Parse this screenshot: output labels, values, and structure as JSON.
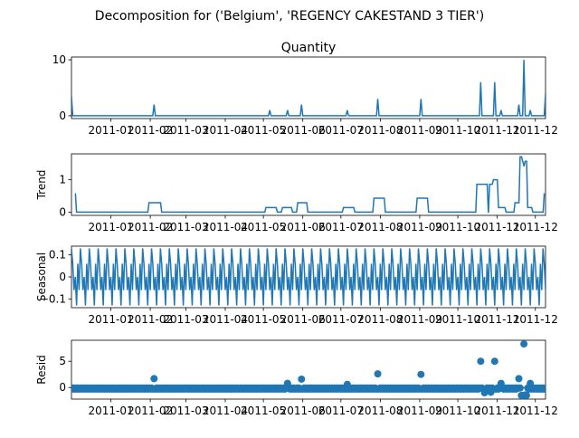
{
  "figure": {
    "suptitle": "Decomposition for ('Belgium', 'REGENCY CAKESTAND 3 TIER')",
    "line_color": "#1f77b4"
  },
  "chart_data": [
    {
      "type": "line",
      "title": "Quantity",
      "ylabel": "",
      "ylim": [
        -0.5,
        10.5
      ],
      "yticks": [
        0,
        10
      ],
      "xlim": [
        "2010-12-01",
        "2011-12-09"
      ],
      "xtick_labels": [
        "2011-01",
        "2011-02",
        "2011-03",
        "2011-04",
        "2011-05",
        "2011-06",
        "2011-07",
        "2011-08",
        "2011-09",
        "2011-10",
        "2011-11",
        "2011-12"
      ],
      "baseline": 0,
      "spikes": [
        {
          "x": "2010-12-01",
          "y": 3.5
        },
        {
          "x": "2011-02-04",
          "y": 2
        },
        {
          "x": "2011-05-06",
          "y": 1
        },
        {
          "x": "2011-05-20",
          "y": 1
        },
        {
          "x": "2011-05-31",
          "y": 2
        },
        {
          "x": "2011-07-06",
          "y": 1
        },
        {
          "x": "2011-07-30",
          "y": 3
        },
        {
          "x": "2011-09-02",
          "y": 3
        },
        {
          "x": "2011-10-19",
          "y": 6
        },
        {
          "x": "2011-10-30",
          "y": 6
        },
        {
          "x": "2011-11-04",
          "y": 1
        },
        {
          "x": "2011-11-18",
          "y": 2
        },
        {
          "x": "2011-11-22",
          "y": 10
        },
        {
          "x": "2011-11-27",
          "y": 1
        },
        {
          "x": "2011-12-09",
          "y": 4
        }
      ]
    },
    {
      "type": "line",
      "title": "",
      "ylabel": "Trend",
      "ylim": [
        -0.1,
        1.8
      ],
      "yticks": [
        0,
        1
      ],
      "xlim": [
        "2010-12-01",
        "2011-12-09"
      ],
      "xtick_labels": [
        "2011-01",
        "2011-02",
        "2011-03",
        "2011-04",
        "2011-05",
        "2011-06",
        "2011-07",
        "2011-08",
        "2011-09",
        "2011-10",
        "2011-11",
        "2011-12"
      ],
      "steps": [
        {
          "x": "2010-12-04",
          "y": 0.57
        },
        {
          "x": "2010-12-05",
          "y": 0
        },
        {
          "x": "2011-01-31",
          "y": 0.29
        },
        {
          "x": "2011-02-10",
          "y": 0
        },
        {
          "x": "2011-05-03",
          "y": 0.14
        },
        {
          "x": "2011-05-12",
          "y": 0
        },
        {
          "x": "2011-05-16",
          "y": 0.14
        },
        {
          "x": "2011-05-24",
          "y": 0
        },
        {
          "x": "2011-05-28",
          "y": 0.29
        },
        {
          "x": "2011-06-05",
          "y": 0
        },
        {
          "x": "2011-07-03",
          "y": 0.14
        },
        {
          "x": "2011-07-12",
          "y": 0
        },
        {
          "x": "2011-07-27",
          "y": 0.43
        },
        {
          "x": "2011-08-05",
          "y": 0
        },
        {
          "x": "2011-08-30",
          "y": 0.43
        },
        {
          "x": "2011-09-08",
          "y": 0
        },
        {
          "x": "2011-10-16",
          "y": 0.86
        },
        {
          "x": "2011-10-25",
          "y": 0
        },
        {
          "x": "2011-10-26",
          "y": 0.86
        },
        {
          "x": "2011-10-29",
          "y": 1.0
        },
        {
          "x": "2011-11-02",
          "y": 0.14
        },
        {
          "x": "2011-11-08",
          "y": 0
        },
        {
          "x": "2011-11-15",
          "y": 0.29
        },
        {
          "x": "2011-11-19",
          "y": 1.71
        },
        {
          "x": "2011-11-21",
          "y": 1.57
        },
        {
          "x": "2011-11-22",
          "y": 1.43
        },
        {
          "x": "2011-11-23",
          "y": 1.57
        },
        {
          "x": "2011-11-25",
          "y": 0.14
        },
        {
          "x": "2011-11-29",
          "y": 0
        },
        {
          "x": "2011-12-08",
          "y": 0.57
        }
      ],
      "end": "2011-12-09"
    },
    {
      "type": "line",
      "title": "",
      "ylabel": "Seasonal",
      "ylim": [
        -0.14,
        0.14
      ],
      "yticks": [
        -0.1,
        0.0,
        0.1
      ],
      "xlim": [
        "2010-12-01",
        "2011-12-09"
      ],
      "xtick_labels": [
        "2011-01",
        "2011-02",
        "2011-03",
        "2011-04",
        "2011-05",
        "2011-06",
        "2011-07",
        "2011-08",
        "2011-09",
        "2011-10",
        "2011-11",
        "2011-12"
      ],
      "period": 7,
      "pattern": [
        0.13,
        0.06,
        -0.06,
        0.0,
        -0.13,
        0.06,
        -0.06
      ]
    },
    {
      "type": "scatter",
      "title": "",
      "ylabel": "Resid",
      "ylim": [
        -2.2,
        9.0
      ],
      "yticks": [
        0,
        5
      ],
      "xlim": [
        "2010-12-01",
        "2011-12-09"
      ],
      "xtick_labels": [
        "2011-01",
        "2011-02",
        "2011-03",
        "2011-04",
        "2011-05",
        "2011-06",
        "2011-07",
        "2011-08",
        "2011-09",
        "2011-10",
        "2011-11",
        "2011-12"
      ],
      "baseline": 0,
      "points": [
        {
          "x": "2011-02-04",
          "y": 1.7
        },
        {
          "x": "2011-05-20",
          "y": 0.8
        },
        {
          "x": "2011-05-31",
          "y": 1.6
        },
        {
          "x": "2011-07-06",
          "y": 0.6
        },
        {
          "x": "2011-07-30",
          "y": 2.6
        },
        {
          "x": "2011-09-02",
          "y": 2.5
        },
        {
          "x": "2011-10-19",
          "y": 5.0
        },
        {
          "x": "2011-10-30",
          "y": 5.0
        },
        {
          "x": "2011-11-04",
          "y": 0.8
        },
        {
          "x": "2011-11-18",
          "y": 1.7
        },
        {
          "x": "2011-11-20",
          "y": -1.5
        },
        {
          "x": "2011-11-21",
          "y": -1.5
        },
        {
          "x": "2011-11-22",
          "y": 8.3
        },
        {
          "x": "2011-11-23",
          "y": -1.4
        },
        {
          "x": "2011-11-24",
          "y": -1.5
        },
        {
          "x": "2011-11-27",
          "y": 0.8
        },
        {
          "x": "2011-10-22",
          "y": -1.0
        },
        {
          "x": "2011-10-27",
          "y": -0.9
        }
      ]
    }
  ]
}
